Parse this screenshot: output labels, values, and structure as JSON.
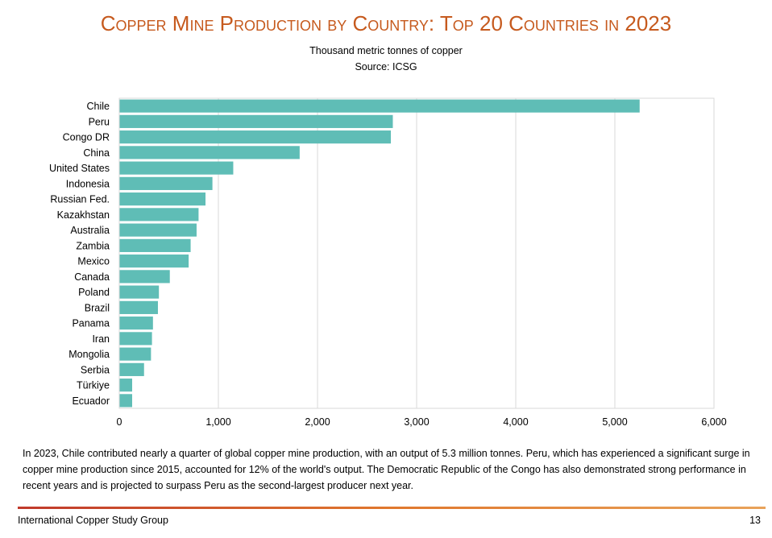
{
  "header": {
    "title": "Copper Mine Production by Country: Top 20 Countries in 2023",
    "subtitle_unit": "Thousand metric tonnes of copper",
    "subtitle_source": "Source: ICSG"
  },
  "chart_data": {
    "type": "bar",
    "orientation": "horizontal",
    "categories": [
      "Chile",
      "Peru",
      "Congo DR",
      "China",
      "United States",
      "Indonesia",
      "Russian Fed.",
      "Kazakhstan",
      "Australia",
      "Zambia",
      "Mexico",
      "Canada",
      "Poland",
      "Brazil",
      "Panama",
      "Iran",
      "Mongolia",
      "Serbia",
      "Türkiye",
      "Ecuador"
    ],
    "values": [
      5250,
      2760,
      2740,
      1820,
      1150,
      940,
      870,
      800,
      780,
      720,
      700,
      510,
      400,
      390,
      340,
      330,
      320,
      250,
      130,
      130
    ],
    "xlim": [
      0,
      6000
    ],
    "xticks": [
      0,
      1000,
      2000,
      3000,
      4000,
      5000,
      6000
    ],
    "xtick_labels": [
      "0",
      "1,000",
      "2,000",
      "3,000",
      "4,000",
      "5,000",
      "6,000"
    ],
    "grid": "vertical",
    "bar_color": "#5fbdb6",
    "grid_color": "#d9d9d9"
  },
  "body": {
    "paragraph": "In 2023, Chile contributed nearly a quarter of global copper mine production, with an output of 5.3 million tonnes. Peru, which has experienced a significant surge in copper mine production since 2015, accounted for 12% of the world's output. The Democratic Republic of the Congo has also demonstrated strong performance in recent years and is projected to surpass Peru as the second-largest producer next year."
  },
  "footer": {
    "organization": "International Copper Study Group",
    "page_number": "13"
  }
}
